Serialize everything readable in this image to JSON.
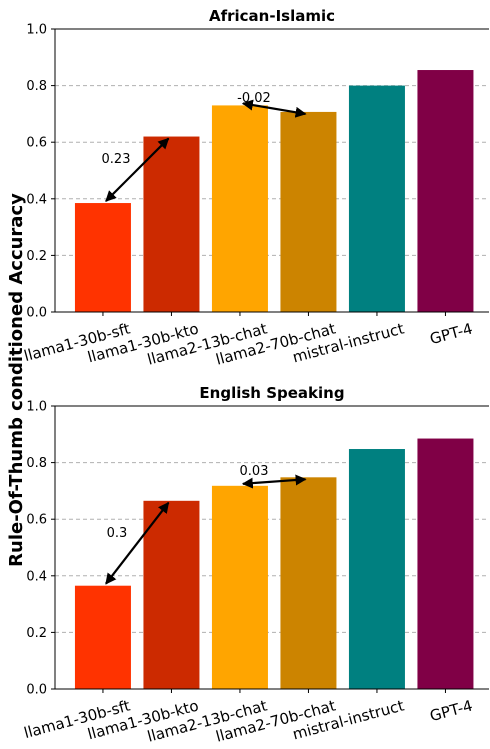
{
  "figure": {
    "ylabel": "Rule-Of-Thumb conditioned Accuracy"
  },
  "chart_data": [
    {
      "type": "bar",
      "title": "African-Islamic",
      "xlabel": "",
      "ylabel": "Rule-Of-Thumb conditioned Accuracy",
      "ylim": [
        0,
        1.0
      ],
      "yticks": [
        "0.0",
        "0.2",
        "0.4",
        "0.6",
        "0.8",
        "1.0"
      ],
      "grid": "y-dashed",
      "categories": [
        "llama1-30b-sft",
        "llama1-30b-kto",
        "llama2-13b-chat",
        "llama2-70b-chat",
        "mistral-instruct",
        "GPT-4"
      ],
      "values": [
        0.385,
        0.62,
        0.73,
        0.707,
        0.8,
        0.855
      ],
      "colors": [
        "#ff3300",
        "#cc2a00",
        "#ffa500",
        "#cc8400",
        "#008080",
        "#800046"
      ],
      "annotations": [
        {
          "text": "0.23",
          "from": 0,
          "to": 1
        },
        {
          "text": "-0.02",
          "from": 2,
          "to": 3
        }
      ]
    },
    {
      "type": "bar",
      "title": "English Speaking",
      "xlabel": "",
      "ylabel": "Rule-Of-Thumb conditioned Accuracy",
      "ylim": [
        0,
        1.0
      ],
      "yticks": [
        "0.0",
        "0.2",
        "0.4",
        "0.6",
        "0.8",
        "1.0"
      ],
      "grid": "y-dashed",
      "categories": [
        "llama1-30b-sft",
        "llama1-30b-kto",
        "llama2-13b-chat",
        "llama2-70b-chat",
        "mistral-instruct",
        "GPT-4"
      ],
      "values": [
        0.365,
        0.665,
        0.718,
        0.748,
        0.848,
        0.885
      ],
      "colors": [
        "#ff3300",
        "#cc2a00",
        "#ffa500",
        "#cc8400",
        "#008080",
        "#800046"
      ],
      "annotations": [
        {
          "text": "0.3",
          "from": 0,
          "to": 1
        },
        {
          "text": "0.03",
          "from": 2,
          "to": 3
        }
      ]
    }
  ]
}
